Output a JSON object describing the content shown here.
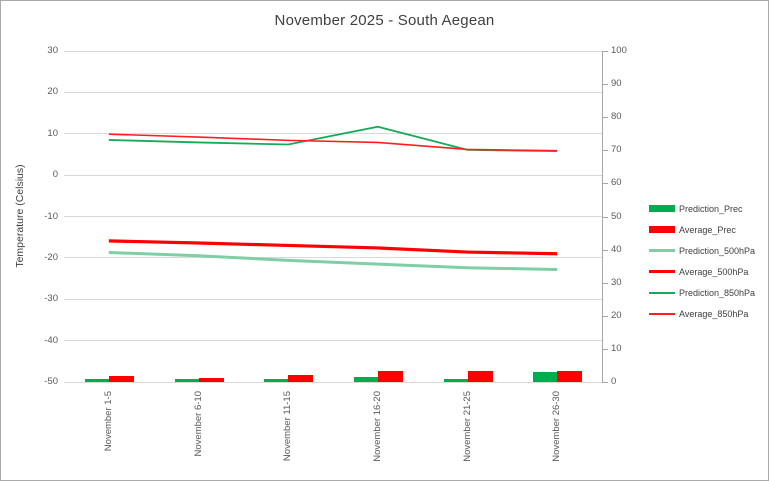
{
  "chart_data": {
    "type": "combo-bar-line",
    "title": "November 2025 - South Aegean",
    "categories": [
      "November 1-5",
      "November 6-10",
      "November 11-15",
      "November 16-20",
      "November 21-25",
      "November 26-30"
    ],
    "left_axis": {
      "title": "Temperature (Celsius)",
      "min": -50,
      "max": 30,
      "step": 10,
      "ticks": [
        30,
        20,
        10,
        0,
        -10,
        -20,
        -30,
        -40,
        -50
      ]
    },
    "right_axis": {
      "min": 0,
      "max": 100,
      "step": 10,
      "ticks": [
        100,
        90,
        80,
        70,
        60,
        50,
        40,
        30,
        20,
        10,
        0
      ]
    },
    "grid": true,
    "legend_position": "right",
    "x_label_rotation": -90,
    "series": [
      {
        "name": "Prediction_Prec",
        "type": "bar",
        "axis": "right",
        "color": "#00ad4e",
        "values": [
          1.0,
          1.0,
          0.8,
          1.4,
          1.0,
          3.0
        ]
      },
      {
        "name": "Average_Prec",
        "type": "bar",
        "axis": "right",
        "color": "#ff0000",
        "values": [
          1.7,
          1.3,
          2.1,
          3.2,
          3.4,
          3.3
        ]
      },
      {
        "name": "Prediction_500hPa",
        "type": "line",
        "axis": "left",
        "color": "#7ecfa5",
        "stroke_width": 3,
        "values": [
          -18.7,
          -19.5,
          -20.6,
          -21.5,
          -22.4,
          -22.8
        ]
      },
      {
        "name": "Average_500hPa",
        "type": "line",
        "axis": "left",
        "color": "#ff0000",
        "stroke_width": 3.2,
        "values": [
          -15.9,
          -16.4,
          -17.0,
          -17.6,
          -18.6,
          -19.0
        ]
      },
      {
        "name": "Prediction_850hPa",
        "type": "line",
        "axis": "left",
        "color": "#18a95b",
        "stroke_width": 1.8,
        "values": [
          8.5,
          7.9,
          7.4,
          11.7,
          6.1,
          5.8
        ]
      },
      {
        "name": "Average_850hPa",
        "type": "line",
        "axis": "left",
        "color": "#ff1f1f",
        "stroke_width": 1.6,
        "values": [
          9.9,
          9.2,
          8.4,
          7.9,
          6.2,
          5.9
        ]
      }
    ],
    "colors": {
      "gridline": "#d9d9d9",
      "axis_line": "#a6a6a6",
      "tick_label": "#595959",
      "title": "#404040"
    }
  }
}
